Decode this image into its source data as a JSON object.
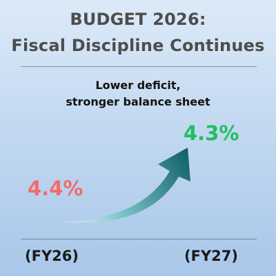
{
  "title": {
    "line1": "BUDGET 2026:",
    "line2": "Fiscal Discipline Continues"
  },
  "subtitle": {
    "line1": "Lower deficit,",
    "line2": "stronger balance sheet"
  },
  "figures": {
    "fy26": {
      "label": "(FY26)",
      "value": "4.4%",
      "color": "#f26b6b"
    },
    "fy27": {
      "label": "(FY27)",
      "value": "4.3%",
      "color": "#1fbf62"
    }
  },
  "arrow": {
    "icon": "curved-arrow-icon",
    "color_start": "#eaf6f7",
    "color_end": "#0e5f66"
  }
}
